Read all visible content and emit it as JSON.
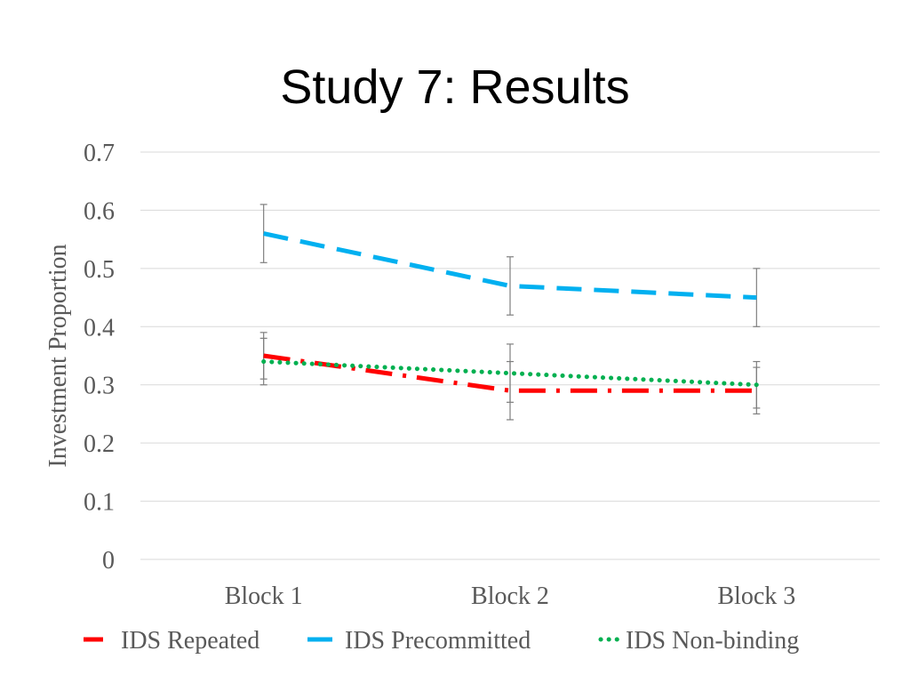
{
  "slide": {
    "title": "Study 7: Results"
  },
  "colors": {
    "gridline": "#d9d9d9",
    "axis_text": "#595959",
    "error_bar": "#7f7f7f",
    "legend_text": "#595959"
  },
  "chart_data": {
    "type": "line",
    "title": "",
    "xlabel": "",
    "ylabel": "Investment Proportion",
    "categories": [
      "Block 1",
      "Block 2",
      "Block 3"
    ],
    "ylim": [
      0,
      0.7
    ],
    "yticks": [
      "0",
      "0.1",
      "0.2",
      "0.3",
      "0.4",
      "0.5",
      "0.6",
      "0.7"
    ],
    "grid": true,
    "legend_position": "bottom",
    "series": [
      {
        "name": "IDS Repeated",
        "color": "#ff0000",
        "style": "dash-dot",
        "values": [
          0.35,
          0.29,
          0.29
        ],
        "error": [
          0.04,
          0.05,
          0.04
        ]
      },
      {
        "name": "IDS Precommitted",
        "color": "#00b0f0",
        "style": "dash",
        "values": [
          0.56,
          0.47,
          0.45
        ],
        "error": [
          0.05,
          0.05,
          0.05
        ]
      },
      {
        "name": "IDS Non-binding",
        "color": "#00b050",
        "style": "dot",
        "values": [
          0.34,
          0.32,
          0.3
        ],
        "error": [
          0.04,
          0.05,
          0.04
        ]
      }
    ]
  }
}
